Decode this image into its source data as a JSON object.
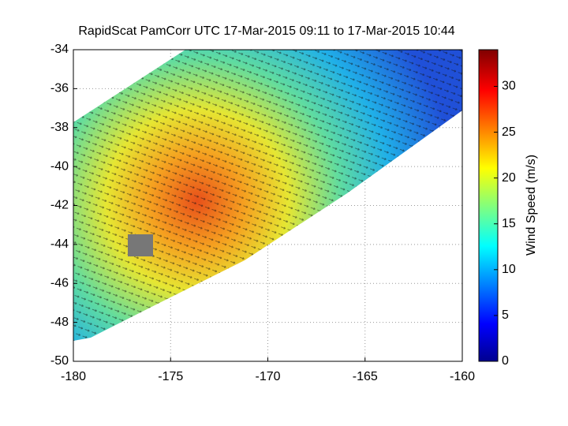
{
  "chart_data": {
    "type": "heatmap",
    "title": "RapidScat PamCorr UTC 17-Mar-2015 09:11 to 17-Mar-2015 10:44",
    "xlim": [
      -180,
      -160
    ],
    "xticks": [
      -180,
      -175,
      -170,
      -165,
      -160
    ],
    "ylim": [
      -50,
      -34
    ],
    "yticks": [
      -50,
      -48,
      -46,
      -44,
      -42,
      -40,
      -38,
      -36,
      -34
    ],
    "grid": true,
    "colorbar": {
      "label": "Wind Speed (m/s)",
      "lim": [
        0,
        34
      ],
      "ticks": [
        0,
        5,
        10,
        15,
        20,
        25,
        30
      ]
    }
  }
}
